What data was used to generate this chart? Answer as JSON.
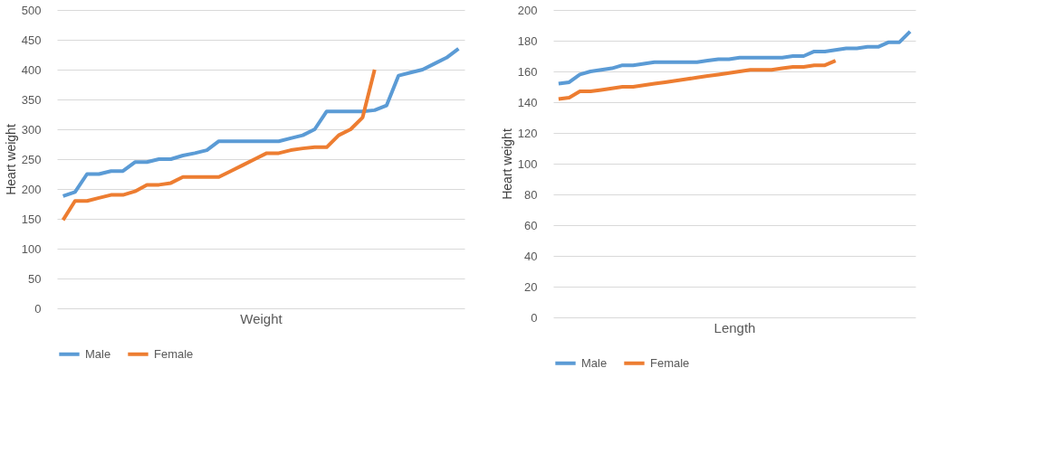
{
  "chart_data": [
    {
      "type": "line",
      "xlabel": "Weight",
      "ylabel": "Heart weight",
      "categories": [
        null,
        null,
        null,
        null,
        null,
        null,
        null,
        null,
        null,
        null,
        null,
        null,
        null,
        null,
        null,
        null,
        null,
        null,
        null,
        null,
        null,
        null,
        null,
        null,
        null,
        null,
        null,
        null,
        null,
        null,
        null,
        null,
        null,
        null
      ],
      "series": [
        {
          "name": "Male",
          "color": "#5b9bd5",
          "values": [
            188,
            195,
            225,
            225,
            230,
            230,
            245,
            245,
            250,
            250,
            256,
            260,
            265,
            280,
            280,
            280,
            280,
            280,
            280,
            285,
            290,
            300,
            330,
            330,
            330,
            330,
            332,
            340,
            390,
            395,
            400,
            410,
            420,
            435
          ]
        },
        {
          "name": "Female",
          "color": "#ed7d31",
          "values": [
            148,
            180,
            180,
            185,
            190,
            190,
            196,
            207,
            207,
            210,
            220,
            220,
            220,
            220,
            230,
            240,
            250,
            260,
            260,
            265,
            268,
            270,
            270,
            290,
            300,
            320,
            400,
            null,
            null,
            null,
            null,
            null,
            null,
            null
          ]
        }
      ],
      "ylim": [
        0,
        500
      ],
      "yticks": [
        0,
        50,
        100,
        150,
        200,
        250,
        300,
        350,
        400,
        450,
        500
      ],
      "grid": "y",
      "legend": "bottom",
      "tick_labels": "y",
      "marker": "none",
      "line_style": "solid"
    },
    {
      "type": "line",
      "xlabel": "Length",
      "ylabel": "Heart weight",
      "categories": [
        null,
        null,
        null,
        null,
        null,
        null,
        null,
        null,
        null,
        null,
        null,
        null,
        null,
        null,
        null,
        null,
        null,
        null,
        null,
        null,
        null,
        null,
        null,
        null,
        null,
        null,
        null,
        null,
        null,
        null,
        null,
        null,
        null,
        null
      ],
      "series": [
        {
          "name": "Male",
          "color": "#5b9bd5",
          "values": [
            152,
            153,
            158,
            160,
            161,
            162,
            164,
            164,
            165,
            166,
            166,
            166,
            166,
            166,
            167,
            168,
            168,
            169,
            169,
            169,
            169,
            169,
            170,
            170,
            173,
            173,
            174,
            175,
            175,
            176,
            176,
            179,
            179,
            186
          ]
        },
        {
          "name": "Female",
          "color": "#ed7d31",
          "values": [
            142,
            143,
            147,
            147,
            148,
            149,
            150,
            150,
            151,
            152,
            153,
            154,
            155,
            156,
            157,
            158,
            159,
            160,
            161,
            161,
            161,
            162,
            163,
            163,
            164,
            164,
            167,
            null,
            null,
            null,
            null,
            null,
            null,
            null
          ]
        }
      ],
      "ylim": [
        0,
        200
      ],
      "yticks": [
        0,
        20,
        40,
        60,
        80,
        100,
        120,
        140,
        160,
        180,
        200
      ],
      "grid": "y",
      "legend": "bottom",
      "tick_labels": "y",
      "marker": "none",
      "line_style": "solid"
    }
  ]
}
